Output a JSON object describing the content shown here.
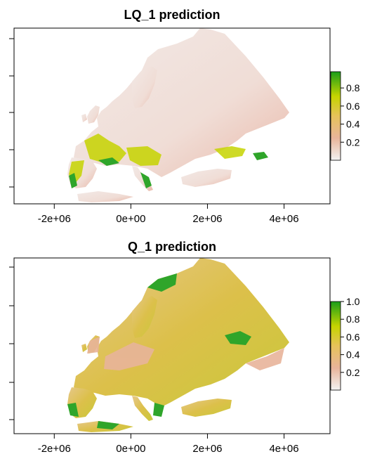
{
  "chart_data": [
    {
      "type": "heatmap",
      "title": "LQ_1 prediction",
      "x_ticks": [
        "-2e+06",
        "0e+00",
        "2e+06",
        "4e+06"
      ],
      "x_tick_values": [
        -2000000,
        0,
        2000000,
        4000000
      ],
      "xlim": [
        -3050000,
        5200000
      ],
      "legend": {
        "placement": "right",
        "ticks": [
          "0.2",
          "0.4",
          "0.6",
          "0.8"
        ],
        "tick_values": [
          0.2,
          0.4,
          0.6,
          0.8
        ],
        "range": [
          0,
          0.98
        ]
      },
      "colors": {
        "low": "#f2f2f2",
        "mid1": "#e8b49a",
        "mid2": "#e6c25a",
        "high1": "#c6d400",
        "high2": "#1a9e1a"
      },
      "grid": false
    },
    {
      "type": "heatmap",
      "title": "Q_1 prediction",
      "x_ticks": [
        "-2e+06",
        "0e+00",
        "2e+06",
        "4e+06"
      ],
      "x_tick_values": [
        -2000000,
        0,
        2000000,
        4000000
      ],
      "xlim": [
        -3050000,
        5200000
      ],
      "legend": {
        "placement": "right",
        "ticks": [
          "0.2",
          "0.4",
          "0.6",
          "0.8",
          "1.0"
        ],
        "tick_values": [
          0.2,
          0.4,
          0.6,
          0.8,
          1.0
        ],
        "range": [
          0,
          1.0
        ]
      },
      "colors": {
        "low": "#f2f2f2",
        "mid1": "#e8b49a",
        "mid2": "#e6c25a",
        "high1": "#c6d400",
        "high2": "#1a9e1a"
      },
      "grid": false
    }
  ]
}
